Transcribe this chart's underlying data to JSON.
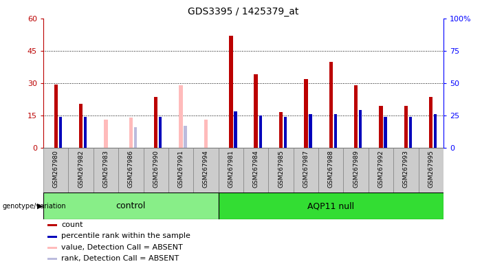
{
  "title": "GDS3395 / 1425379_at",
  "samples": [
    "GSM267980",
    "GSM267982",
    "GSM267983",
    "GSM267986",
    "GSM267990",
    "GSM267991",
    "GSM267994",
    "GSM267981",
    "GSM267984",
    "GSM267985",
    "GSM267987",
    "GSM267988",
    "GSM267989",
    "GSM267992",
    "GSM267993",
    "GSM267995"
  ],
  "count_values": [
    29.5,
    20.5,
    0,
    0,
    23.5,
    0,
    0,
    52,
    34,
    16.5,
    32,
    40,
    29,
    19.5,
    19.5,
    23.5
  ],
  "rank_values": [
    24,
    24,
    0,
    0,
    24,
    0,
    0,
    28,
    25,
    24,
    26,
    26,
    29,
    24,
    24,
    26
  ],
  "absent_count": [
    0,
    0,
    13,
    14,
    0,
    29,
    13,
    0,
    0,
    0,
    0,
    0,
    0,
    0,
    0,
    0
  ],
  "absent_rank": [
    0,
    0,
    0,
    16,
    0,
    17,
    0,
    0,
    0,
    0,
    0,
    0,
    0,
    0,
    0,
    0
  ],
  "is_absent": [
    false,
    false,
    true,
    true,
    false,
    true,
    true,
    false,
    false,
    false,
    false,
    false,
    false,
    false,
    false,
    false
  ],
  "groups": [
    "control",
    "control",
    "control",
    "control",
    "control",
    "control",
    "control",
    "AQP11 null",
    "AQP11 null",
    "AQP11 null",
    "AQP11 null",
    "AQP11 null",
    "AQP11 null",
    "AQP11 null",
    "AQP11 null",
    "AQP11 null"
  ],
  "control_count": 7,
  "ylim_left": [
    0,
    60
  ],
  "ylim_right": [
    0,
    100
  ],
  "yticks_left": [
    0,
    15,
    30,
    45,
    60
  ],
  "yticks_right": [
    0,
    25,
    50,
    75,
    100
  ],
  "count_color": "#bb0000",
  "rank_color": "#0000bb",
  "absent_count_color": "#ffbbbb",
  "absent_rank_color": "#bbbbdd",
  "control_bg": "#88ee88",
  "aqp11_bg": "#33dd33",
  "label_bg": "#cccccc",
  "legend_labels": [
    "count",
    "percentile rank within the sample",
    "value, Detection Call = ABSENT",
    "rank, Detection Call = ABSENT"
  ],
  "legend_colors": [
    "#bb0000",
    "#0000bb",
    "#ffbbbb",
    "#bbbbdd"
  ]
}
